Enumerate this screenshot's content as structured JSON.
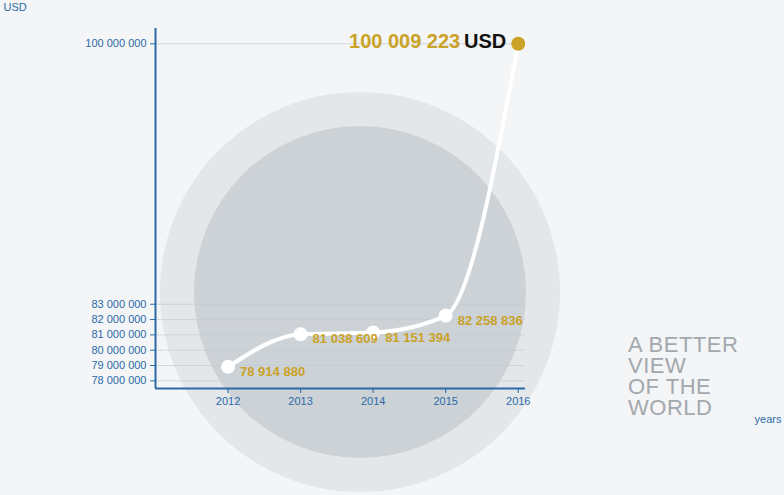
{
  "chart_data": {
    "type": "line",
    "y_label": "USD",
    "x_label": "years",
    "x": [
      2012,
      2013,
      2014,
      2015,
      2016
    ],
    "values": [
      78914880,
      81038609,
      81151394,
      82258836,
      100009223
    ],
    "value_labels": [
      "78 914 880",
      "81 038 609",
      "81 151 394",
      "82 258 836",
      "100 009 223"
    ],
    "data_labels": true,
    "color": "#ffffff",
    "colors": [
      "#ffffff",
      "#ffffff",
      "#ffffff",
      "#ffffff",
      "#c9a227"
    ],
    "marker": "circle",
    "xlim": [
      2011,
      2016.1
    ],
    "xticks": [
      2012,
      2013,
      2014,
      2015,
      2016
    ],
    "ylim": [
      77500000,
      101000000
    ],
    "yticks": [
      {
        "value": 78000000,
        "label": "78 000 000"
      },
      {
        "value": 79000000,
        "label": "79 000 000"
      },
      {
        "value": 80000000,
        "label": "80 000 000"
      },
      {
        "value": 81000000,
        "label": "81 000 000"
      },
      {
        "value": 82000000,
        "label": "82 000 000"
      },
      {
        "value": 83000000,
        "label": "83 000 000"
      },
      {
        "value": 100000000,
        "label": "100 000 000"
      }
    ],
    "grid": true,
    "annotations": [
      "USD",
      "A BETTER\nVIEW\nOF THE\nWORLD"
    ]
  }
}
